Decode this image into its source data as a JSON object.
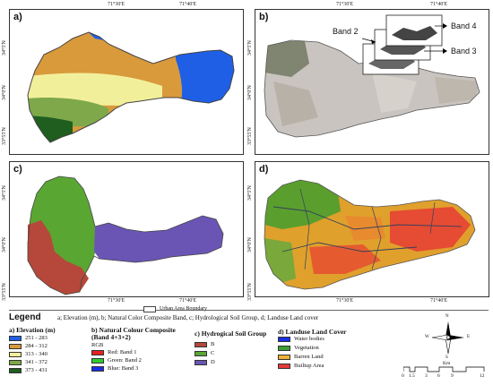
{
  "top_coords": {
    "left_a": "71°30'E",
    "left_b": "71°40'E",
    "right_a": "71°30'E",
    "right_b": "71°40'E"
  },
  "bottom_coords": {
    "left_a": "71°30'E",
    "left_b": "71°40'E",
    "right_a": "71°30'E",
    "right_b": "71°40'E"
  },
  "lat_labels": {
    "l1": "34°5'N",
    "l2": "34°0'N",
    "l3": "33°55'N"
  },
  "panels": {
    "a": "a)",
    "b": "b)",
    "c": "c)",
    "d": "d)"
  },
  "bands": {
    "b2": "Band 2",
    "b3": "Band 3",
    "b4": "Band 4"
  },
  "legend": {
    "title": "Legend",
    "boundary_label": "Urban Area Boundary",
    "description": "a; Elevation (m), b; Natural Color Composite Band, c; Hydrological Soil Group, d; Landuse Land cover",
    "elevation": {
      "title": "a) Elevation (m)",
      "items": [
        {
          "label": "251 - 283",
          "color": "#1e5fe6"
        },
        {
          "label": "284 - 312",
          "color": "#d99a3c"
        },
        {
          "label": "313 - 340",
          "color": "#f2ef9a"
        },
        {
          "label": "341 - 372",
          "color": "#7ea84a"
        },
        {
          "label": "373 - 431",
          "color": "#1f5e1f"
        }
      ]
    },
    "ncc": {
      "title": "b) Natural Colour Composite",
      "subtitle": "(Band 4+3+2)",
      "rgb": "RGB",
      "items": [
        {
          "label": "Red:   Band 1",
          "color": "#e62020"
        },
        {
          "label": "Green: Band 2",
          "color": "#2ecc2e"
        },
        {
          "label": "Blue:  Band 3",
          "color": "#1a2ee6"
        }
      ]
    },
    "soil": {
      "title": "c) Hydrogical Soil Group",
      "items": [
        {
          "label": "B",
          "color": "#b5483a"
        },
        {
          "label": "C",
          "color": "#5aa632"
        },
        {
          "label": "D",
          "color": "#6a55b5"
        }
      ]
    },
    "lulc": {
      "title": "d) Landuse Land Cover",
      "items": [
        {
          "label": "Water bodies",
          "color": "#1a2ee6"
        },
        {
          "label": "Vegetation",
          "color": "#3d9e32"
        },
        {
          "label": "Barren Land",
          "color": "#f2b233"
        },
        {
          "label": "Builtup Area",
          "color": "#e63b3b"
        }
      ]
    },
    "scale": {
      "unit": "Km",
      "ticks": [
        "0",
        "1.5",
        "3",
        "6",
        "9",
        "12"
      ]
    },
    "compass": {
      "n": "N",
      "s": "S",
      "e": "E",
      "w": "W"
    }
  }
}
